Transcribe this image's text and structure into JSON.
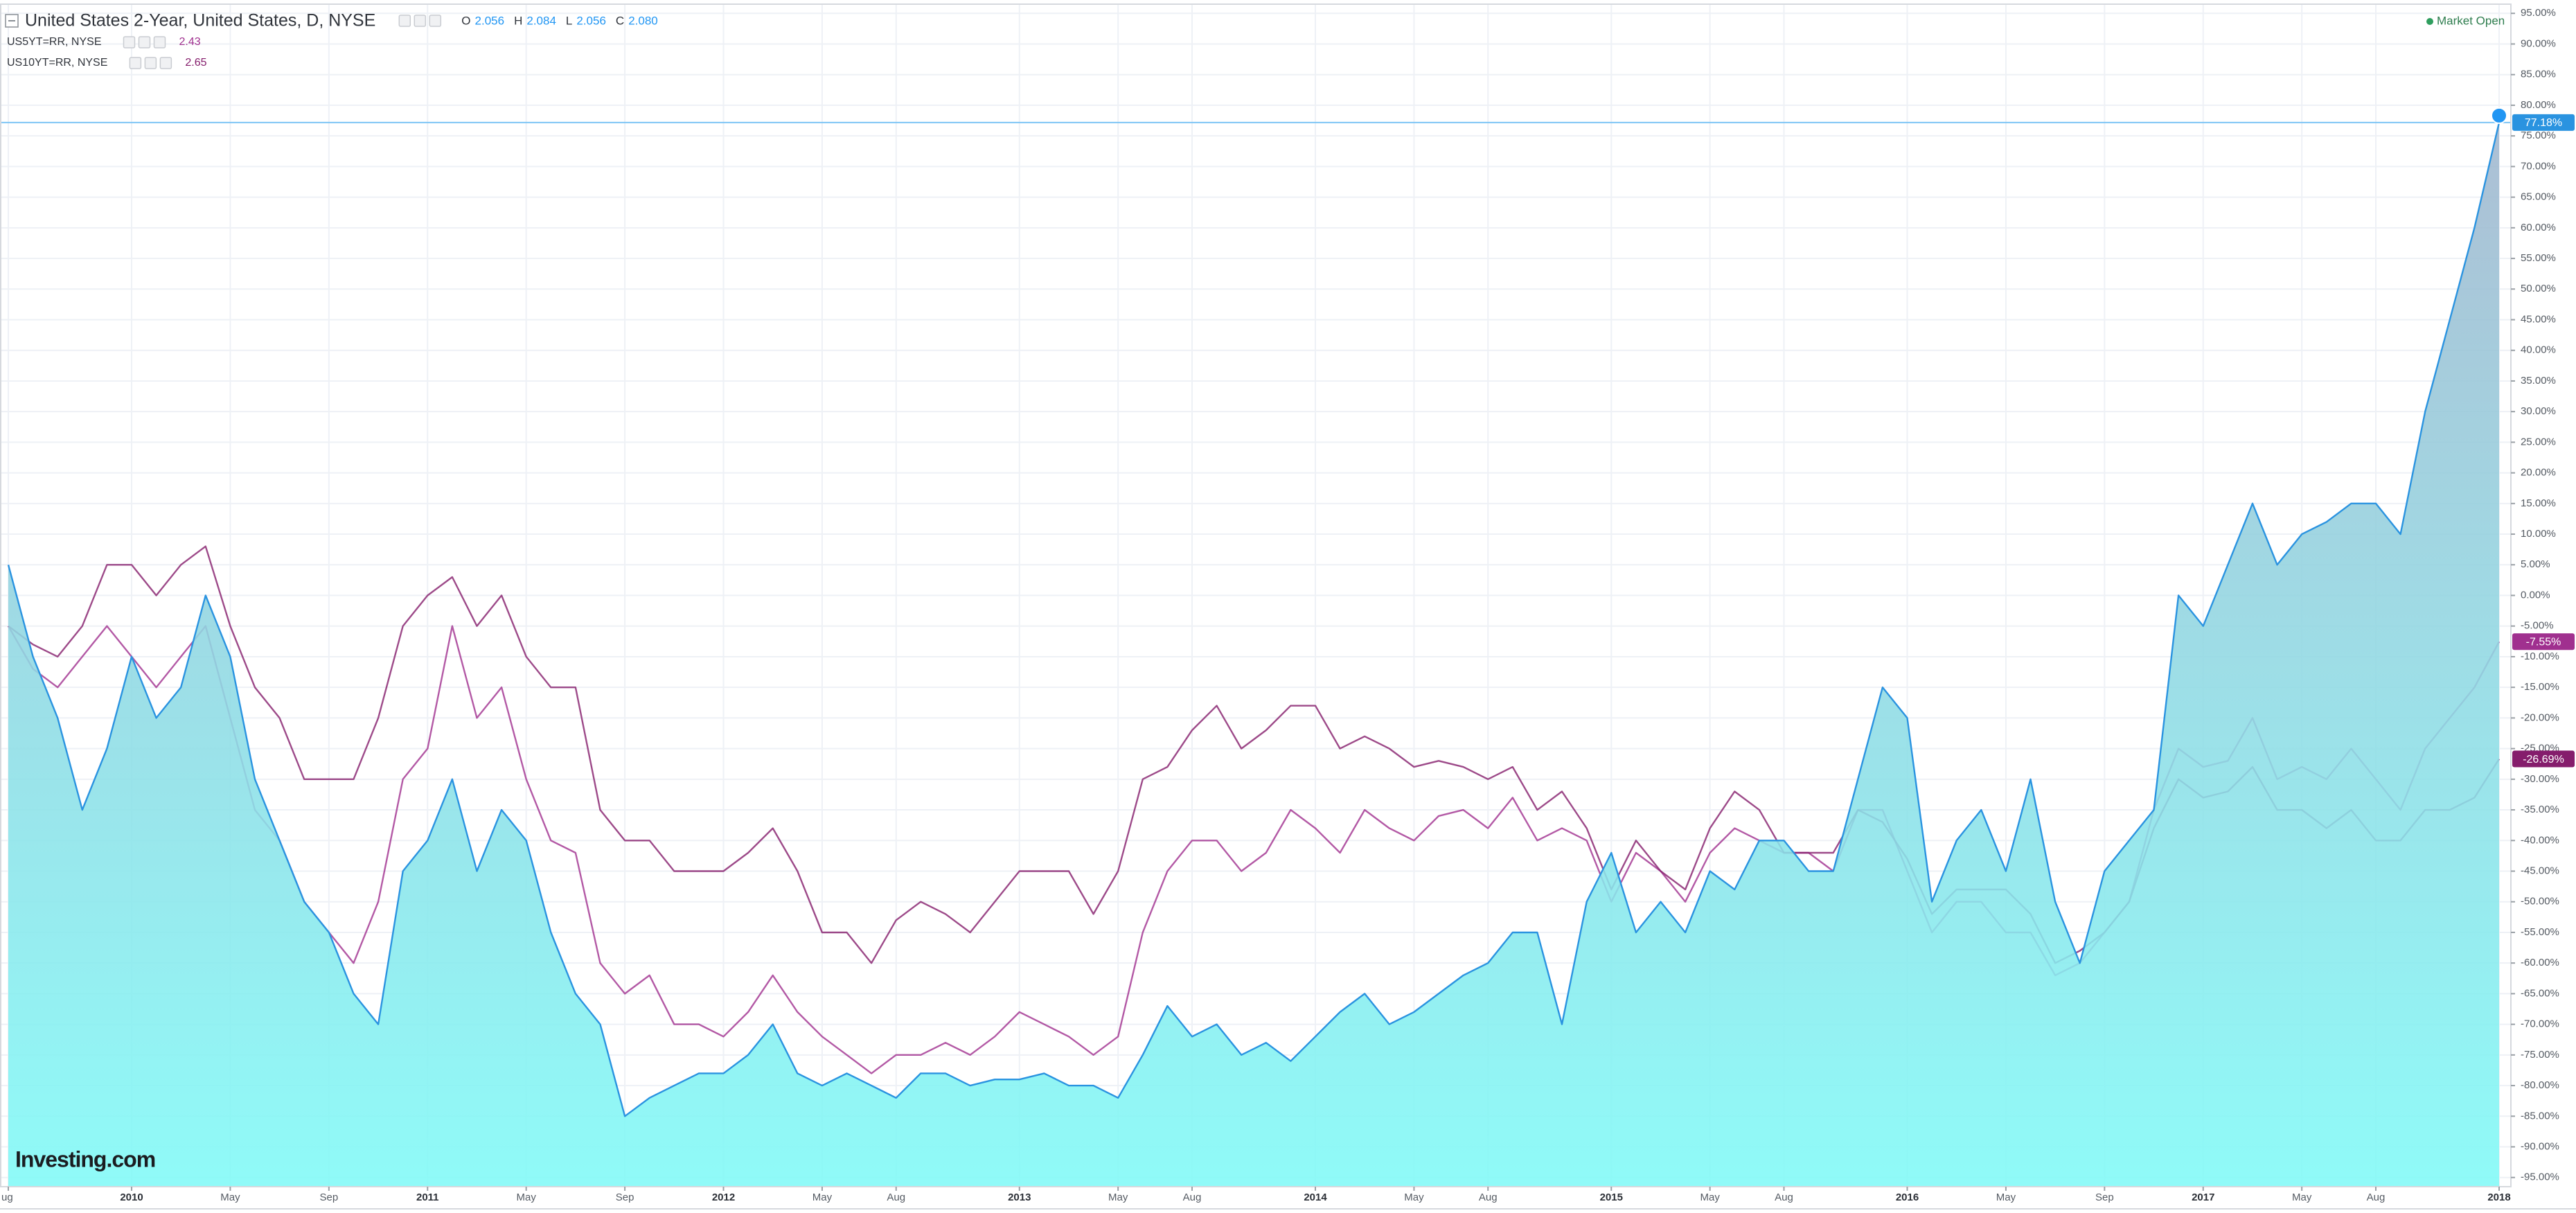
{
  "chart_data": {
    "type": "line",
    "ohlc": [
      {
        "key": "O",
        "value": "2.056"
      },
      {
        "key": "H",
        "value": "2.084"
      },
      {
        "key": "L",
        "value": "2.056"
      },
      {
        "key": "C",
        "value": "2.080"
      }
    ],
    "status": "Market Open",
    "watermark": "Investing.com",
    "categories": [
      "ug",
      null,
      null,
      null,
      null,
      "2010",
      null,
      null,
      null,
      "May",
      null,
      null,
      null,
      "Sep",
      null,
      null,
      null,
      "2011",
      null,
      null,
      null,
      "May",
      null,
      null,
      null,
      "Sep",
      null,
      null,
      null,
      "2012",
      null,
      null,
      null,
      "May",
      null,
      null,
      "Aug",
      null,
      null,
      null,
      null,
      "2013",
      null,
      null,
      null,
      "May",
      null,
      null,
      "Aug",
      null,
      null,
      null,
      null,
      "2014",
      null,
      null,
      null,
      "May",
      null,
      null,
      "Aug",
      null,
      null,
      null,
      null,
      "2015",
      null,
      null,
      null,
      "May",
      null,
      null,
      "Aug",
      null,
      null,
      null,
      null,
      "2016",
      null,
      null,
      null,
      "May",
      null,
      null,
      null,
      "Sep",
      null,
      null,
      null,
      "2017",
      null,
      null,
      null,
      "May",
      null,
      null,
      "Aug",
      null,
      null,
      null,
      null,
      "2018"
    ],
    "series": [
      {
        "name": "United States 2-Year, United States, D, NYSE",
        "type": "area",
        "color": "#2a93e0",
        "fill": [
          "#a1b6ce",
          "#80faf7"
        ],
        "values": [
          5,
          -10,
          -20,
          -35,
          -25,
          -10,
          -20,
          -15,
          0,
          -10,
          -30,
          -40,
          -50,
          -55,
          -65,
          -70,
          -45,
          -40,
          -30,
          -45,
          -35,
          -40,
          -55,
          -65,
          -70,
          -85,
          -82,
          -80,
          -78,
          -78,
          -75,
          -70,
          -78,
          -80,
          -78,
          -80,
          -82,
          -78,
          -78,
          -80,
          -79,
          -79,
          -78,
          -80,
          -80,
          -82,
          -75,
          -67,
          -72,
          -70,
          -75,
          -73,
          -76,
          -72,
          -68,
          -65,
          -70,
          -68,
          -65,
          -62,
          -60,
          -55,
          -55,
          -70,
          -50,
          -42,
          -55,
          -50,
          -55,
          -45,
          -48,
          -40,
          -40,
          -45,
          -45,
          -30,
          -15,
          -20,
          -50,
          -40,
          -35,
          -45,
          -30,
          -50,
          -60,
          -45,
          -40,
          -35,
          0,
          -5,
          5,
          15,
          5,
          10,
          12,
          15,
          15,
          10,
          30,
          45,
          60,
          77.18
        ],
        "value_labels": {
          "101": "77.18%"
        }
      },
      {
        "name": "US5YT=RR, NYSE",
        "type": "line",
        "quote": "2.43",
        "color": "#a0308f",
        "values": [
          -5,
          -12,
          -15,
          -10,
          -5,
          -10,
          -15,
          -10,
          -5,
          -20,
          -35,
          -40,
          -50,
          -55,
          -60,
          -50,
          -30,
          -25,
          -5,
          -20,
          -15,
          -30,
          -40,
          -42,
          -60,
          -65,
          -62,
          -70,
          -70,
          -72,
          -68,
          -62,
          -68,
          -72,
          -75,
          -78,
          -75,
          -75,
          -73,
          -75,
          -72,
          -68,
          -70,
          -72,
          -75,
          -72,
          -55,
          -45,
          -40,
          -40,
          -45,
          -42,
          -35,
          -38,
          -42,
          -35,
          -38,
          -40,
          -36,
          -35,
          -38,
          -33,
          -40,
          -38,
          -40,
          -50,
          -42,
          -45,
          -50,
          -42,
          -38,
          -40,
          -42,
          -42,
          -45,
          -35,
          -35,
          -45,
          -55,
          -50,
          -50,
          -55,
          -55,
          -62,
          -60,
          -55,
          -50,
          -35,
          -25,
          -28,
          -27,
          -20,
          -30,
          -28,
          -30,
          -25,
          -30,
          -35,
          -25,
          -20,
          -15,
          -7.55
        ],
        "value_labels": {
          "101": "-7.55%"
        }
      },
      {
        "name": "US10YT=RR, NYSE",
        "type": "line",
        "quote": "2.65",
        "color": "#851d6c",
        "values": [
          -5,
          -8,
          -10,
          -5,
          5,
          5,
          0,
          5,
          8,
          -5,
          -15,
          -20,
          -30,
          -30,
          -30,
          -20,
          -5,
          0,
          3,
          -5,
          0,
          -10,
          -15,
          -15,
          -35,
          -40,
          -40,
          -45,
          -45,
          -45,
          -42,
          -38,
          -45,
          -55,
          -55,
          -60,
          -53,
          -50,
          -52,
          -55,
          -50,
          -45,
          -45,
          -45,
          -52,
          -45,
          -30,
          -28,
          -22,
          -18,
          -25,
          -22,
          -18,
          -18,
          -25,
          -23,
          -25,
          -28,
          -27,
          -28,
          -30,
          -28,
          -35,
          -32,
          -38,
          -48,
          -40,
          -45,
          -48,
          -38,
          -32,
          -35,
          -42,
          -42,
          -42,
          -35,
          -37,
          -43,
          -52,
          -48,
          -48,
          -48,
          -52,
          -60,
          -58,
          -55,
          -50,
          -38,
          -30,
          -33,
          -32,
          -28,
          -35,
          -35,
          -38,
          -35,
          -40,
          -40,
          -35,
          -35,
          -33,
          -26.69
        ],
        "value_labels": {
          "101": "-26.69%"
        }
      }
    ],
    "ylim": [
      -96.5,
      96.5
    ],
    "yticks": [
      {
        "value": 95,
        "label": "95.00%"
      },
      {
        "value": 90,
        "label": "90.00%"
      },
      {
        "value": 85,
        "label": "85.00%"
      },
      {
        "value": 80,
        "label": "80.00%"
      },
      {
        "value": 75,
        "label": "75.00%"
      },
      {
        "value": 70,
        "label": "70.00%"
      },
      {
        "value": 65,
        "label": "65.00%"
      },
      {
        "value": 60,
        "label": "60.00%"
      },
      {
        "value": 55,
        "label": "55.00%"
      },
      {
        "value": 50,
        "label": "50.00%"
      },
      {
        "value": 45,
        "label": "45.00%"
      },
      {
        "value": 40,
        "label": "40.00%"
      },
      {
        "value": 35,
        "label": "35.00%"
      },
      {
        "value": 30,
        "label": "30.00%"
      },
      {
        "value": 25,
        "label": "25.00%"
      },
      {
        "value": 20,
        "label": "20.00%"
      },
      {
        "value": 15,
        "label": "15.00%"
      },
      {
        "value": 10,
        "label": "10.00%"
      },
      {
        "value": 5,
        "label": "5.00%"
      },
      {
        "value": 0,
        "label": "0.00%"
      },
      {
        "value": -5,
        "label": "-5.00%"
      },
      {
        "value": -10,
        "label": "-10.00%"
      },
      {
        "value": -15,
        "label": "-15.00%"
      },
      {
        "value": -20,
        "label": "-20.00%"
      },
      {
        "value": -25,
        "label": "-25.00%"
      },
      {
        "value": -30,
        "label": "-30.00%"
      },
      {
        "value": -35,
        "label": "-35.00%"
      },
      {
        "value": -40,
        "label": "-40.00%"
      },
      {
        "value": -45,
        "label": "-45.00%"
      },
      {
        "value": -50,
        "label": "-50.00%"
      },
      {
        "value": -55,
        "label": "-55.00%"
      },
      {
        "value": -60,
        "label": "-60.00%"
      },
      {
        "value": -65,
        "label": "-65.00%"
      },
      {
        "value": -70,
        "label": "-70.00%"
      },
      {
        "value": -75,
        "label": "-75.00%"
      },
      {
        "value": -80,
        "label": "-80.00%"
      },
      {
        "value": -85,
        "label": "-85.00%"
      },
      {
        "value": -90,
        "label": "-90.00%"
      },
      {
        "value": -95,
        "label": "-95.00%"
      }
    ],
    "grid": true,
    "price_line": true
  }
}
